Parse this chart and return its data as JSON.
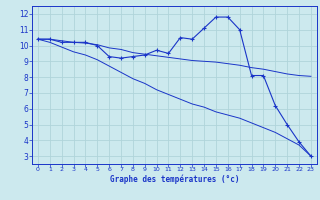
{
  "xlabel": "Graphe des températures (°c)",
  "x_ticks": [
    0,
    1,
    2,
    3,
    4,
    5,
    6,
    7,
    8,
    9,
    10,
    11,
    12,
    13,
    14,
    15,
    16,
    17,
    18,
    19,
    20,
    21,
    22,
    23
  ],
  "ylim": [
    2.5,
    12.5
  ],
  "xlim": [
    -0.5,
    23.5
  ],
  "y_ticks": [
    3,
    4,
    5,
    6,
    7,
    8,
    9,
    10,
    11,
    12
  ],
  "bg_color": "#cce9ee",
  "grid_color": "#b0d4da",
  "line_color": "#1a35c8",
  "temp_x": [
    0,
    1,
    2,
    3,
    4,
    5,
    6,
    7,
    8,
    9,
    10,
    11,
    12,
    13,
    14,
    15,
    16,
    17,
    18,
    19,
    20,
    21,
    22,
    23
  ],
  "temp_y": [
    10.4,
    10.4,
    10.2,
    10.2,
    10.2,
    10.0,
    9.3,
    9.2,
    9.3,
    9.4,
    9.7,
    9.5,
    10.5,
    10.4,
    11.1,
    11.8,
    11.8,
    11.0,
    8.1,
    8.1,
    6.2,
    5.0,
    3.9,
    3.0
  ],
  "line2_x": [
    0,
    1,
    2,
    3,
    4,
    5,
    6,
    7,
    8,
    9,
    10,
    11,
    12,
    13,
    14,
    15,
    16,
    17,
    18,
    19,
    20,
    21,
    22,
    23
  ],
  "line2_y": [
    10.4,
    10.4,
    10.3,
    10.2,
    10.15,
    10.05,
    9.85,
    9.75,
    9.55,
    9.45,
    9.35,
    9.25,
    9.15,
    9.05,
    9.0,
    8.95,
    8.85,
    8.75,
    8.6,
    8.5,
    8.35,
    8.2,
    8.1,
    8.05
  ],
  "line3_x": [
    0,
    1,
    2,
    3,
    4,
    5,
    6,
    7,
    8,
    9,
    10,
    11,
    12,
    13,
    14,
    15,
    16,
    17,
    18,
    19,
    20,
    21,
    22,
    23
  ],
  "line3_y": [
    10.4,
    10.2,
    9.9,
    9.6,
    9.4,
    9.1,
    8.7,
    8.3,
    7.9,
    7.6,
    7.2,
    6.9,
    6.6,
    6.3,
    6.1,
    5.8,
    5.6,
    5.4,
    5.1,
    4.8,
    4.5,
    4.1,
    3.7,
    3.0
  ]
}
